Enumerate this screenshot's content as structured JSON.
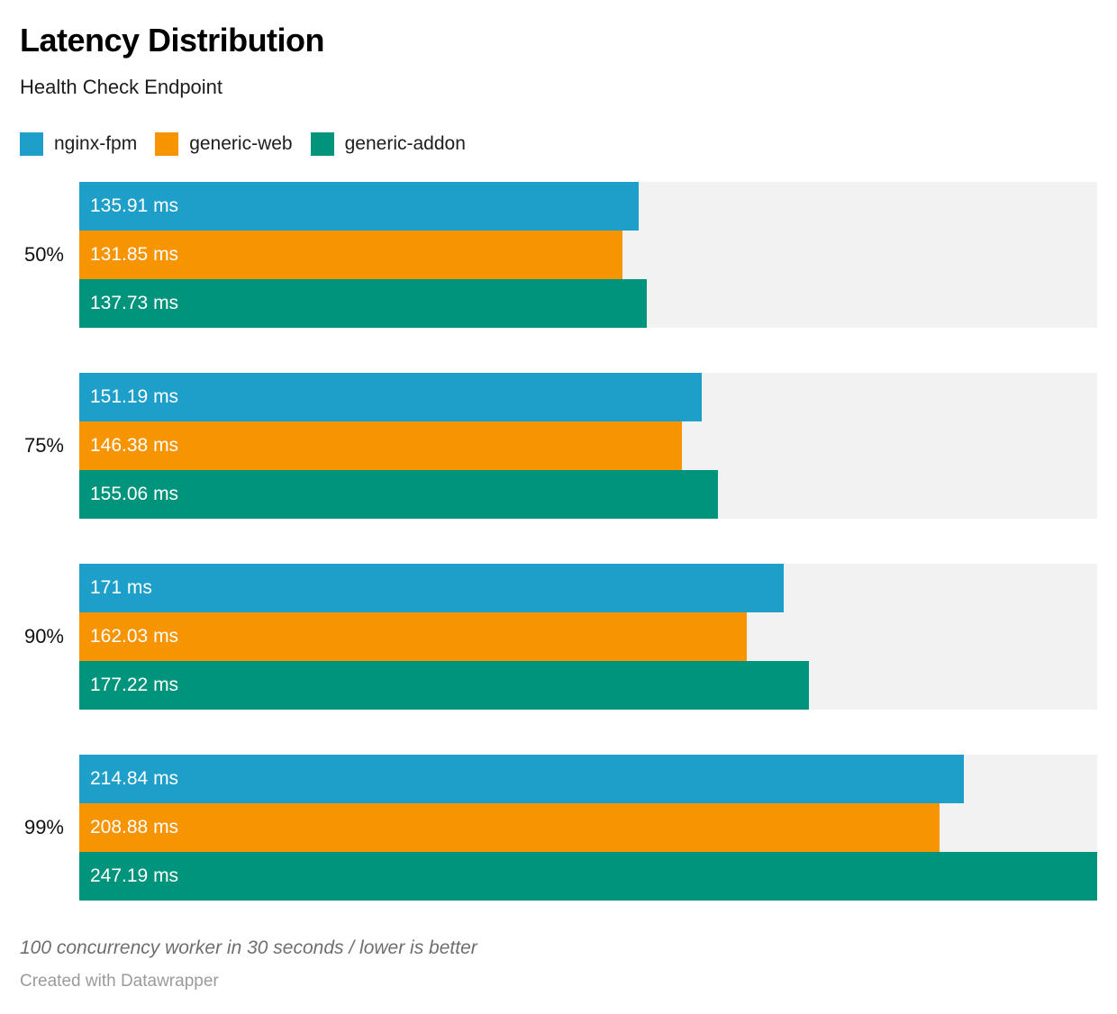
{
  "header": {
    "title": "Latency Distribution",
    "subtitle": "Health Check Endpoint"
  },
  "chart_data": {
    "type": "bar",
    "orientation": "horizontal",
    "title": "Latency Distribution",
    "subtitle": "Health Check Endpoint",
    "unit": "ms",
    "categories": [
      "50%",
      "75%",
      "90%",
      "99%"
    ],
    "series": [
      {
        "name": "nginx-fpm",
        "color": "#1e9fca",
        "values": [
          135.91,
          151.19,
          171,
          214.84
        ],
        "labels": [
          "135.91 ms",
          "151.19 ms",
          "171 ms",
          "214.84 ms"
        ]
      },
      {
        "name": "generic-web",
        "color": "#f79402",
        "values": [
          131.85,
          146.38,
          162.03,
          208.88
        ],
        "labels": [
          "131.85 ms",
          "146.38 ms",
          "162.03 ms",
          "208.88 ms"
        ]
      },
      {
        "name": "generic-addon",
        "color": "#00947c",
        "values": [
          137.73,
          155.06,
          177.22,
          247.19
        ],
        "labels": [
          "137.73 ms",
          "155.06 ms",
          "177.22 ms",
          "247.19 ms"
        ]
      }
    ],
    "xlim": [
      0,
      247.19
    ],
    "grid": false,
    "legend_position": "top",
    "track_color": "#f2f2f2",
    "value_labels_inside": true
  },
  "footer": {
    "note": "100 concurrency worker in 30 seconds / lower is better",
    "attribution": "Created with Datawrapper"
  }
}
